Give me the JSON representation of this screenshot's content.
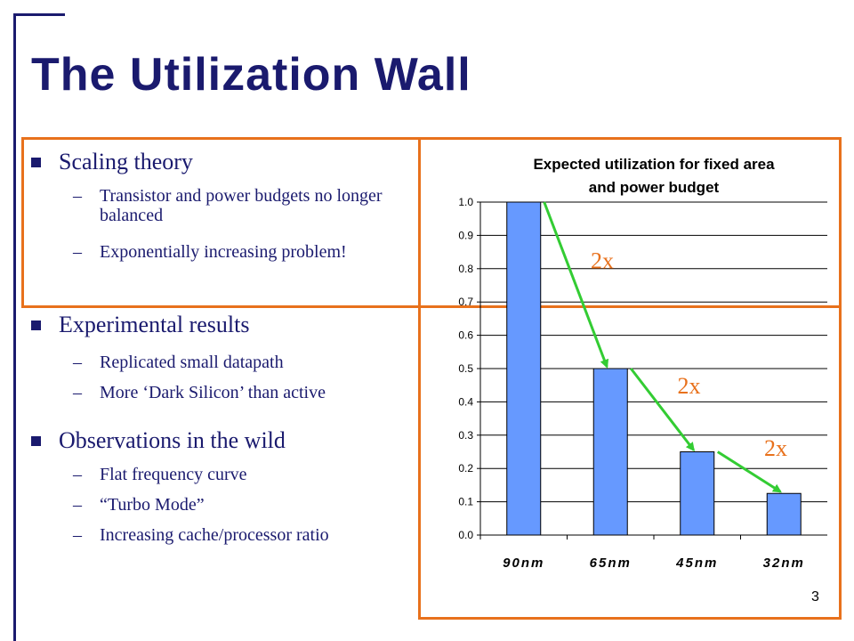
{
  "slide": {
    "title": "The Utilization Wall",
    "page_number": "3"
  },
  "bullets": [
    {
      "label": "Scaling theory",
      "subs": [
        "Transistor and power budgets no longer balanced",
        "Exponentially increasing problem!"
      ]
    },
    {
      "label": "Experimental results",
      "subs": [
        "Replicated small datapath",
        "More ‘Dark Silicon’ than active"
      ]
    },
    {
      "label": "Observations in the wild",
      "subs": [
        "Flat frequency curve",
        "“Turbo Mode”",
        "Increasing cache/processor ratio"
      ]
    }
  ],
  "sub_dash": "–",
  "colors": {
    "title": "#1a1a6e",
    "frame": "#1a1a6e",
    "box_border": "#e8711c",
    "bar_fill": "#6699ff",
    "arrow": "#33cc33",
    "annotation": "#e8711c"
  },
  "chart_data": {
    "type": "bar",
    "title": "Expected utilization for fixed area and power budget",
    "title_lines": [
      "Expected utilization for fixed area",
      "and power budget"
    ],
    "categories": [
      "90nm",
      "65nm",
      "45nm",
      "32nm"
    ],
    "values": [
      1.0,
      0.5,
      0.25,
      0.125
    ],
    "ylim": [
      0,
      1.0
    ],
    "yticks": [
      "0.0",
      "0.1",
      "0.2",
      "0.3",
      "0.4",
      "0.5",
      "0.6",
      "0.7",
      "0.8",
      "0.9",
      "1.0"
    ],
    "grid": true,
    "annotations": [
      "2x",
      "2x",
      "2x"
    ]
  }
}
